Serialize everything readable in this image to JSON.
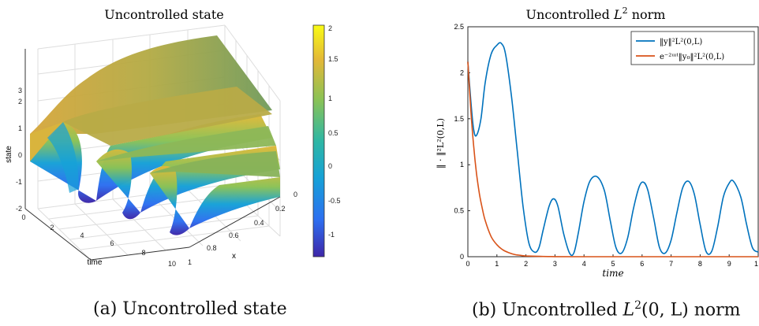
{
  "left_panel": {
    "title": "Uncontrolled state",
    "xlabel": "time",
    "ylabel": "x",
    "zlabel": "state",
    "time_ticks": [
      "0",
      "2",
      "4",
      "6",
      "8",
      "10"
    ],
    "x_ticks": [
      "0",
      "0.2",
      "0.4",
      "0.6",
      "0.8",
      "1"
    ],
    "z_ticks": [
      "-2",
      "-1",
      "0",
      "1",
      "2",
      "3"
    ],
    "colorbar_ticks": [
      "2",
      "1.5",
      "1",
      "0.5",
      "0",
      "-0.5",
      "-1"
    ],
    "colors": [
      "#3e26a8",
      "#2d6ff0",
      "#16a1d7",
      "#2eb7a4",
      "#8bc255",
      "#e3b838",
      "#f9fb15"
    ]
  },
  "right_panel": {
    "title_prefix": "Uncontrolled ",
    "title_math": "L",
    "title_sup": "2",
    "title_suffix": " norm",
    "ylabel": "‖ · ‖²L²(0,L)",
    "xlabel": "time",
    "legend": [
      "‖y‖²L²(0,L)",
      "e⁻²ᵚᵗ‖y₀‖²L²(0,L)"
    ],
    "line_colors": [
      "#0072bd",
      "#d95319"
    ]
  },
  "chart_data": [
    {
      "type": "line",
      "title": "Uncontrolled L^2 norm",
      "xlabel": "time",
      "ylabel": "||·||^2_{L^2(0,L)}",
      "xlim": [
        0,
        10
      ],
      "ylim": [
        0,
        2.5
      ],
      "x_ticks": [
        "0",
        "1",
        "2",
        "3",
        "4",
        "5",
        "6",
        "7",
        "8",
        "9",
        "1"
      ],
      "y_ticks": [
        "0",
        "0.5",
        "1",
        "1.5",
        "2",
        "2.5"
      ],
      "legend_position": "top-right",
      "series": [
        {
          "name": "||y||^2_{L^2(0,L)}",
          "x": [
            0,
            0.1,
            0.2,
            0.3,
            0.45,
            0.6,
            0.8,
            1.0,
            1.15,
            1.3,
            1.5,
            1.7,
            1.9,
            2.1,
            2.3,
            2.45,
            2.6,
            2.8,
            2.95,
            3.1,
            3.3,
            3.5,
            3.65,
            3.8,
            4.0,
            4.2,
            4.45,
            4.7,
            4.9,
            5.1,
            5.3,
            5.5,
            5.7,
            5.9,
            6.05,
            6.2,
            6.4,
            6.6,
            6.8,
            7.0,
            7.2,
            7.4,
            7.6,
            7.8,
            8.0,
            8.2,
            8.4,
            8.6,
            8.8,
            9.0,
            9.15,
            9.4,
            9.6,
            9.8,
            10.0
          ],
          "y": [
            2.12,
            1.7,
            1.38,
            1.32,
            1.5,
            1.9,
            2.2,
            2.3,
            2.32,
            2.2,
            1.75,
            1.15,
            0.55,
            0.15,
            0.05,
            0.1,
            0.3,
            0.55,
            0.63,
            0.55,
            0.25,
            0.04,
            0.04,
            0.25,
            0.6,
            0.82,
            0.87,
            0.72,
            0.4,
            0.1,
            0.04,
            0.2,
            0.52,
            0.76,
            0.81,
            0.72,
            0.42,
            0.1,
            0.04,
            0.18,
            0.48,
            0.75,
            0.82,
            0.68,
            0.35,
            0.06,
            0.06,
            0.32,
            0.65,
            0.8,
            0.82,
            0.65,
            0.35,
            0.1,
            0.05
          ]
        },
        {
          "name": "e^{-2ωt}||y_0||^2_{L^2(0,L)}",
          "x": [
            0,
            0.1,
            0.2,
            0.3,
            0.4,
            0.5,
            0.6,
            0.8,
            1.0,
            1.2,
            1.4,
            1.6,
            1.8,
            2.0,
            2.5,
            3.0,
            4.0,
            6.0,
            8.0,
            10.0
          ],
          "y": [
            2.12,
            1.6,
            1.2,
            0.9,
            0.68,
            0.52,
            0.39,
            0.22,
            0.13,
            0.075,
            0.045,
            0.025,
            0.015,
            0.008,
            0.003,
            0.001,
            0.0,
            0.0,
            0.0,
            0.0
          ]
        }
      ]
    }
  ],
  "captions": {
    "left": "(a) Uncontrolled state",
    "right_prefix": "(b) Uncontrolled ",
    "right_math": "L",
    "right_sup": "2",
    "right_suffix": "(0, L) norm"
  }
}
